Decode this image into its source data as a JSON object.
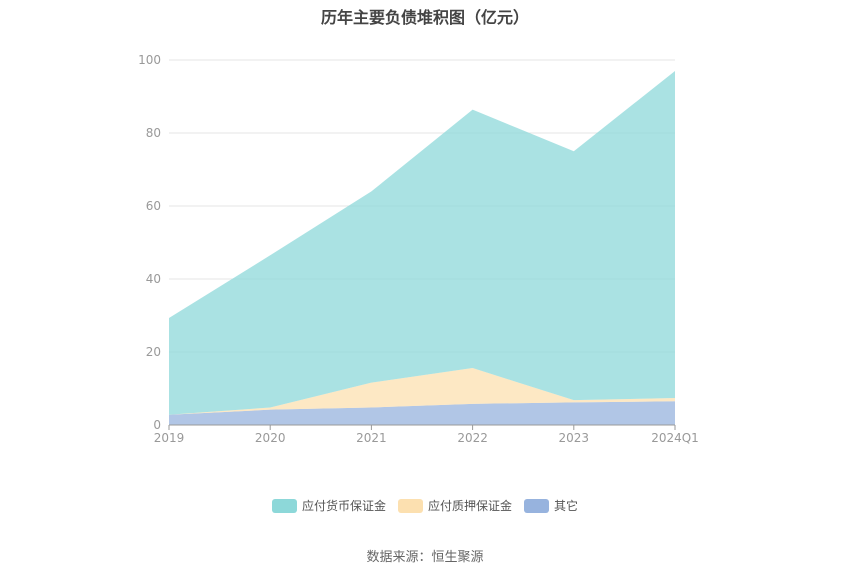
{
  "chart_data": {
    "type": "area",
    "stacked": true,
    "title": "历年主要负债堆积图（亿元）",
    "categories": [
      "2019",
      "2020",
      "2021",
      "2022",
      "2023",
      "2024Q1"
    ],
    "ylim": [
      0,
      100
    ],
    "yticks": [
      0,
      20,
      40,
      60,
      80,
      100
    ],
    "grid": true,
    "legend_position": "bottom",
    "series": [
      {
        "name": "其它",
        "color": "#97b3de",
        "values": [
          2.8,
          4.2,
          4.8,
          5.8,
          6.2,
          6.5
        ]
      },
      {
        "name": "应付质押保证金",
        "color": "#fce0b0",
        "values": [
          0.0,
          0.6,
          6.8,
          9.8,
          0.6,
          0.9
        ]
      },
      {
        "name": "应付货币保证金",
        "color": "#8dd8d9",
        "values": [
          26.5,
          41.7,
          52.4,
          70.8,
          68.2,
          89.6
        ]
      }
    ],
    "legend_order": [
      "应付货币保证金",
      "应付质押保证金",
      "其它"
    ]
  },
  "footer": {
    "source": "数据来源：恒生聚源"
  }
}
